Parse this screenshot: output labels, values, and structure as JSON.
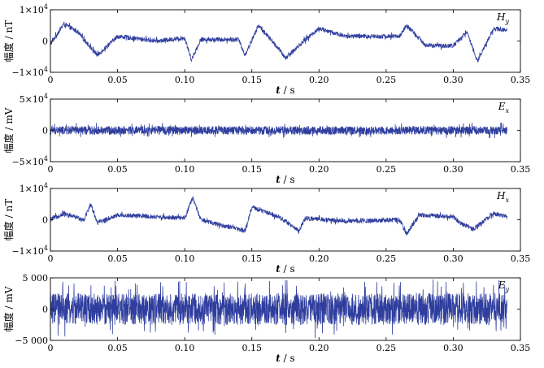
{
  "chart_data": [
    {
      "type": "line",
      "series": [
        {
          "name": "H_y",
          "label_main": "H",
          "label_sub": "y",
          "color": "#2f3e9e",
          "shape": [
            [
              0,
              -0.1
            ],
            [
              0.01,
              0.55
            ],
            [
              0.02,
              0.3
            ],
            [
              0.03,
              -0.2
            ],
            [
              0.035,
              -0.45
            ],
            [
              0.05,
              0.15
            ],
            [
              0.08,
              0.0
            ],
            [
              0.1,
              0.1
            ],
            [
              0.105,
              -0.6
            ],
            [
              0.112,
              0.05
            ],
            [
              0.14,
              0.05
            ],
            [
              0.145,
              -0.45
            ],
            [
              0.155,
              0.5
            ],
            [
              0.17,
              -0.25
            ],
            [
              0.175,
              -0.55
            ],
            [
              0.19,
              0.05
            ],
            [
              0.2,
              0.4
            ],
            [
              0.22,
              0.15
            ],
            [
              0.26,
              0.15
            ],
            [
              0.265,
              0.5
            ],
            [
              0.28,
              -0.15
            ],
            [
              0.3,
              -0.15
            ],
            [
              0.31,
              0.3
            ],
            [
              0.318,
              -0.65
            ],
            [
              0.33,
              0.4
            ],
            [
              0.34,
              0.35
            ]
          ],
          "noise": 0.07,
          "points": 2000
        }
      ],
      "xlim": [
        0,
        0.35
      ],
      "xticks": [
        "0",
        "0.05",
        "0.10",
        "0.15",
        "0.20",
        "0.25",
        "0.30",
        "0.35"
      ],
      "ylim": [
        -1,
        1
      ],
      "yticks": [
        "−1×10",
        "0",
        "1×10"
      ],
      "ytick_exp": "4",
      "ylabel": "幅度 / nT",
      "xlabel_main": "t",
      "xlabel_unit": " / s"
    },
    {
      "type": "line",
      "series": [
        {
          "name": "E_x",
          "label_main": "E",
          "label_sub": "x",
          "color": "#2f3e9e",
          "shape": [
            [
              0,
              0
            ],
            [
              0.34,
              0
            ]
          ],
          "noise": 0.13,
          "points": 2400
        }
      ],
      "xlim": [
        0,
        0.35
      ],
      "xticks": [
        "0",
        "0.05",
        "0.10",
        "0.15",
        "0.20",
        "0.25",
        "0.30",
        "0.35"
      ],
      "ylim": [
        -5,
        5
      ],
      "yticks": [
        "−5×10",
        "0",
        "5×10"
      ],
      "ytick_exp": "4",
      "ylabel": "幅度 / mV",
      "xlabel_main": "t",
      "xlabel_unit": " / s"
    },
    {
      "type": "line",
      "series": [
        {
          "name": "H_x",
          "label_main": "H",
          "label_sub": "x",
          "color": "#2f3e9e",
          "shape": [
            [
              0,
              0.0
            ],
            [
              0.01,
              0.2
            ],
            [
              0.025,
              0.0
            ],
            [
              0.03,
              0.5
            ],
            [
              0.035,
              -0.1
            ],
            [
              0.05,
              0.15
            ],
            [
              0.1,
              0.05
            ],
            [
              0.106,
              0.7
            ],
            [
              0.112,
              0.0
            ],
            [
              0.13,
              -0.2
            ],
            [
              0.145,
              -0.35
            ],
            [
              0.15,
              0.4
            ],
            [
              0.17,
              0.1
            ],
            [
              0.18,
              -0.2
            ],
            [
              0.185,
              -0.35
            ],
            [
              0.19,
              0.05
            ],
            [
              0.22,
              -0.05
            ],
            [
              0.26,
              0.0
            ],
            [
              0.265,
              -0.45
            ],
            [
              0.275,
              0.15
            ],
            [
              0.3,
              0.1
            ],
            [
              0.305,
              -0.1
            ],
            [
              0.315,
              -0.3
            ],
            [
              0.33,
              0.2
            ],
            [
              0.34,
              0.1
            ]
          ],
          "noise": 0.07,
          "points": 2000
        }
      ],
      "xlim": [
        0,
        0.35
      ],
      "xticks": [
        "0",
        "0.05",
        "0.10",
        "0.15",
        "0.20",
        "0.25",
        "0.30",
        "0.35"
      ],
      "ylim": [
        -1,
        1
      ],
      "yticks": [
        "−1×10",
        "0",
        "1×10"
      ],
      "ytick_exp": "4",
      "ylabel": "幅度 / nT",
      "xlabel_main": "t",
      "xlabel_unit": " / s"
    },
    {
      "type": "line",
      "series": [
        {
          "name": "E_y",
          "label_main": "E",
          "label_sub": "y",
          "color": "#2f3e9e",
          "shape": [
            [
              0,
              0
            ],
            [
              0.34,
              0
            ]
          ],
          "noise": 0.5,
          "points": 2400
        }
      ],
      "xlim": [
        0,
        0.35
      ],
      "xticks": [
        "0",
        "0.05",
        "0.10",
        "0.15",
        "0.20",
        "0.25",
        "0.30",
        "0.35"
      ],
      "ylim": [
        -5000,
        5000
      ],
      "yticks": [
        "−5 000",
        "0",
        "5 000"
      ],
      "ytick_exp": "",
      "ylabel": "幅度 / mV",
      "xlabel_main": "t",
      "xlabel_unit": " / s"
    }
  ]
}
